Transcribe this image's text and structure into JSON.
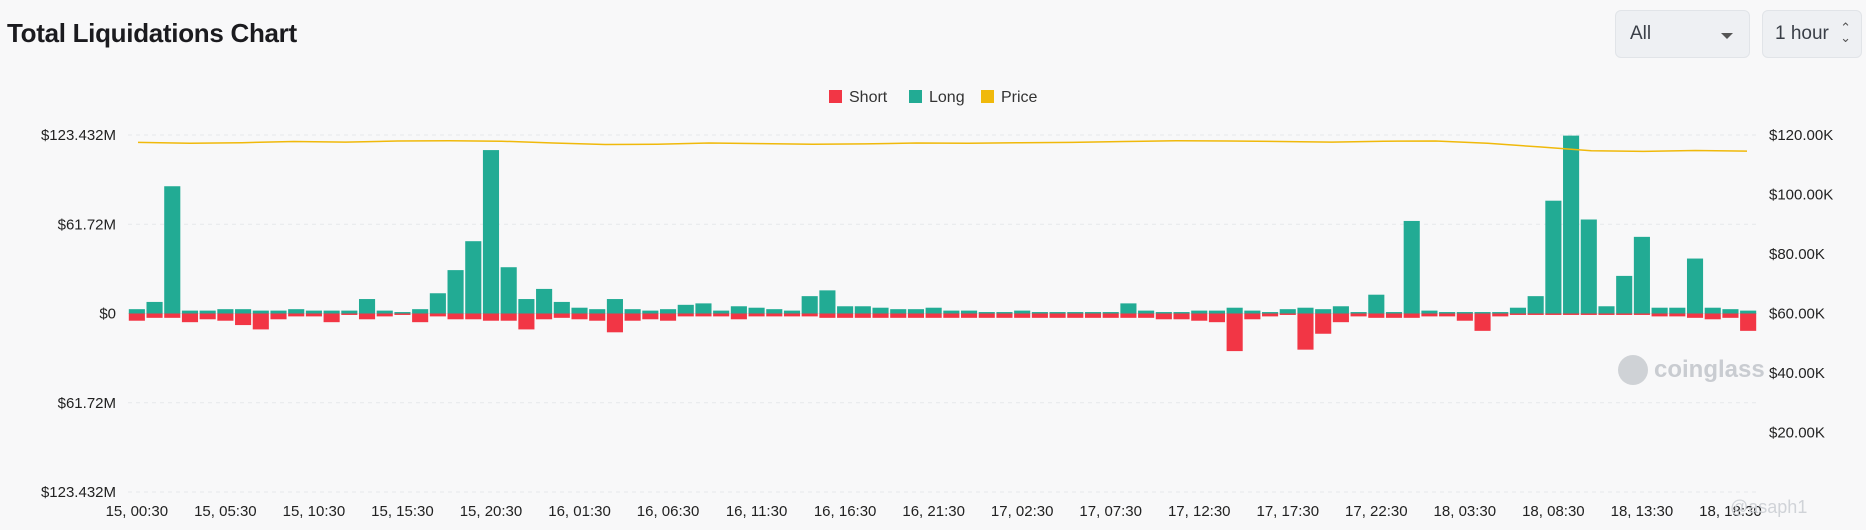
{
  "header": {
    "title": "Total Liquidations Chart",
    "filter_value": "All",
    "interval_value": "1 hour"
  },
  "watermark": {
    "text": "coinglass",
    "handle": "@asaph1"
  },
  "chart_data": {
    "type": "bar",
    "title": "Total Liquidations Chart",
    "legend": {
      "placement": "top-center",
      "items": [
        {
          "name": "Short",
          "color": "#f23645"
        },
        {
          "name": "Long",
          "color": "#22ab94"
        },
        {
          "name": "Price",
          "color": "#f0b90b"
        }
      ]
    },
    "grid": true,
    "y_left": {
      "ticks": [
        "$123.432M",
        "$61.72M",
        "$0",
        "$61.72M",
        "$123.432M"
      ],
      "range_millions": [
        -123.432,
        123.432
      ]
    },
    "y_right": {
      "ticks": [
        "$120.00K",
        "$100.00K",
        "$80.00K",
        "$60.00K",
        "$40.00K",
        "$20.00K"
      ],
      "range": [
        0,
        120000
      ]
    },
    "x_tick_labels": [
      "15, 00:30",
      "15, 05:30",
      "15, 10:30",
      "15, 15:30",
      "15, 20:30",
      "16, 01:30",
      "16, 06:30",
      "16, 11:30",
      "16, 16:30",
      "16, 21:30",
      "17, 02:30",
      "17, 07:30",
      "17, 12:30",
      "17, 17:30",
      "17, 22:30",
      "18, 03:30",
      "18, 08:30",
      "18, 13:30",
      "18, 18:30"
    ],
    "x_tick_every": 5,
    "series": [
      {
        "name": "Long",
        "unit": "USD millions",
        "values": [
          3,
          8,
          88,
          2,
          2,
          3,
          3,
          2,
          2,
          3,
          2,
          2,
          2,
          10,
          2,
          1,
          3,
          14,
          30,
          50,
          113,
          32,
          10,
          17,
          8,
          4,
          3,
          10,
          3,
          2,
          3,
          6,
          7,
          2,
          5,
          4,
          3,
          2,
          12,
          16,
          5,
          5,
          4,
          3,
          3,
          4,
          2,
          2,
          1,
          1,
          2,
          1,
          1,
          1,
          1,
          1,
          7,
          2,
          1,
          1,
          2,
          2,
          4,
          2,
          1,
          3,
          4,
          3,
          5,
          1,
          13,
          1,
          64,
          2,
          1,
          1,
          1,
          1,
          4,
          12,
          78,
          123,
          65,
          5,
          26,
          53,
          4,
          4,
          38,
          4,
          3,
          2
        ],
        "color": "#22ab94"
      },
      {
        "name": "Short",
        "unit": "USD millions",
        "values": [
          -5,
          -3,
          -3,
          -6,
          -4,
          -5,
          -8,
          -11,
          -4,
          -2,
          -2,
          -6,
          -1,
          -4,
          -2,
          -1,
          -6,
          -2,
          -4,
          -4,
          -5,
          -5,
          -11,
          -4,
          -3,
          -4,
          -5,
          -13,
          -5,
          -4,
          -5,
          -2,
          -2,
          -2,
          -4,
          -2,
          -2,
          -2,
          -2,
          -3,
          -3,
          -3,
          -3,
          -3,
          -3,
          -3,
          -3,
          -3,
          -3,
          -3,
          -3,
          -3,
          -3,
          -3,
          -3,
          -3,
          -3,
          -3,
          -4,
          -4,
          -5,
          -6,
          -26,
          -4,
          -2,
          -1,
          -25,
          -14,
          -6,
          -2,
          -3,
          -3,
          -3,
          -2,
          -2,
          -5,
          -12,
          -2,
          -1,
          -1,
          -1,
          -1,
          -1,
          -1,
          -1,
          -1,
          -2,
          -2,
          -3,
          -4,
          -3,
          -12
        ],
        "color": "#f23645"
      },
      {
        "name": "Price",
        "unit": "USD thousands",
        "values": [
          117.5,
          117.2,
          117.4,
          117.8,
          117.6,
          118.0,
          118.1,
          117.9,
          117.3,
          116.8,
          116.9,
          117.3,
          117.1,
          116.9,
          117.0,
          117.3,
          117.2,
          117.4,
          117.5,
          117.8,
          118.1,
          118.0,
          117.8,
          117.6,
          117.9,
          118.0,
          117.2,
          116.0,
          114.7,
          114.5,
          114.8,
          114.6
        ],
        "color": "#f0b90b"
      }
    ]
  }
}
